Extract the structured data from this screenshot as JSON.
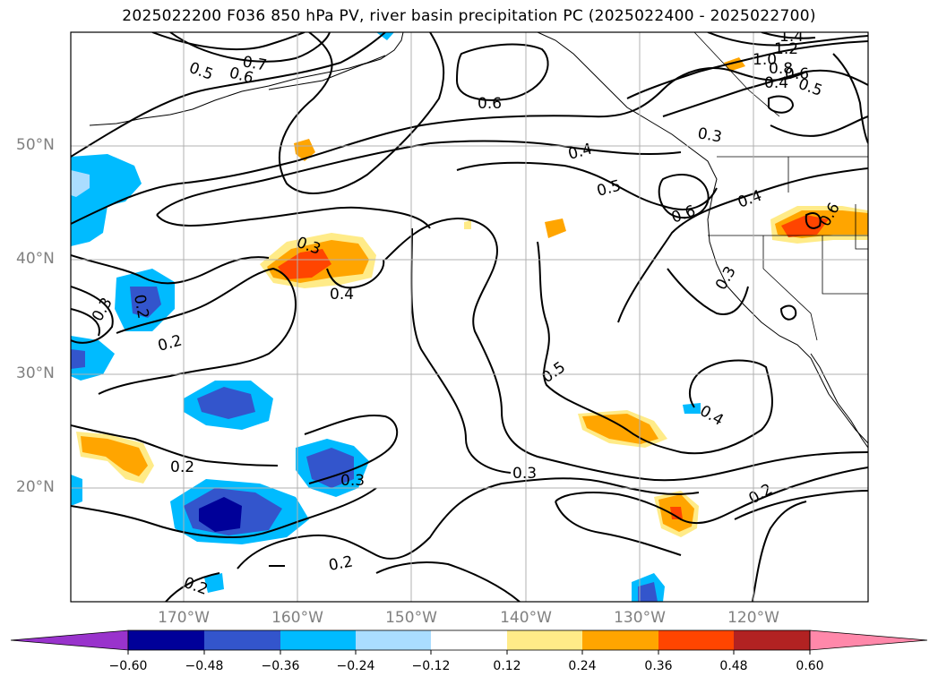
{
  "title": "2025022200 F036 850 hPa PV, river basin precipitation PC (2025022400 - 2025022700)",
  "lat_labels": [
    "50°N",
    "40°N",
    "30°N",
    "20°N"
  ],
  "lon_labels": [
    "170°W",
    "160°W",
    "150°W",
    "140°W",
    "130°W",
    "120°W"
  ],
  "contour_labels": [
    "0.5",
    "0.6",
    "0.7",
    "1.4",
    "1.2",
    "1.0",
    "0.8",
    "0.6",
    "0.4",
    "0.5",
    "0.6",
    "0.3",
    "0.4",
    "0.5",
    "0.6",
    "0.4",
    "0.3",
    "0.3",
    "0.4",
    "0.3",
    "0.2",
    "0.2",
    "0.2",
    "0.3",
    "0.5",
    "0.3",
    "0.4",
    "0.2",
    "0.2",
    "0.2",
    "0.6"
  ],
  "colorbar": {
    "ticks": [
      "−0.60",
      "−0.48",
      "−0.36",
      "−0.24",
      "−0.12",
      "0.12",
      "0.24",
      "0.36",
      "0.48",
      "0.60"
    ],
    "colors": {
      "under": "#9933cc",
      "c1": "#000099",
      "c2": "#3355cc",
      "c3": "#00bbff",
      "c4": "#aaddff",
      "c5": "#ffffff",
      "c6": "#ffeb88",
      "c7": "#ffa500",
      "c8": "#ff4500",
      "c9": "#b22222",
      "over": "#ff88aa"
    }
  }
}
